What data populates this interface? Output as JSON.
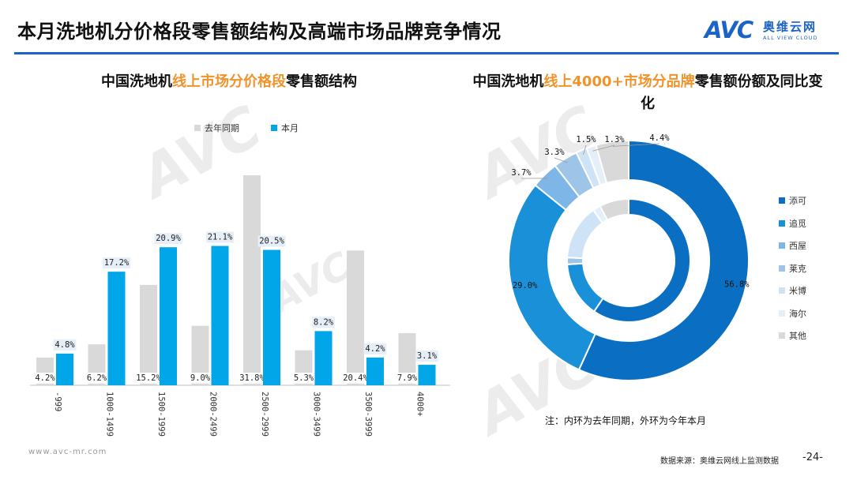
{
  "page": {
    "title": "本月洗地机分价格段零售额结构及高端市场品牌竞争情况",
    "brand_mark": "AVC",
    "brand_name": "奥维云网",
    "brand_en": "ALL VIEW CLOUD",
    "watermark": "AVC",
    "note": "注：内环为去年同期，外环为今年本月",
    "footer_url": "www.avc-mr.com",
    "source": "数据来源：奥维云网线上监测数据",
    "page_number": "-24-"
  },
  "colors": {
    "accent": "#1b63c6",
    "highlight": "#f0932b",
    "bar_last_year": "#d9d9d9",
    "bar_this_month": "#00a6e8"
  },
  "left_chart": {
    "title_prefix": "中国洗地机",
    "title_highlight": "线上市场分价格段",
    "title_suffix": "零售额结构"
  },
  "right_chart": {
    "title_prefix": "中国洗地机",
    "title_highlight": "线上4000+市场分品牌",
    "title_suffix": "零售额份额及同比变化"
  },
  "chart_data": [
    {
      "type": "bar",
      "categories": [
        "-999",
        "1000-1499",
        "1500-1999",
        "2000-2499",
        "2500-2999",
        "3000-3499",
        "3500-3999",
        "4000+"
      ],
      "series": [
        {
          "name": "去年同期",
          "values": [
            4.2,
            6.2,
            15.2,
            9.0,
            31.8,
            5.3,
            20.4,
            7.9
          ],
          "labels": [
            "4.2%",
            "6.2%",
            "15.2%",
            "9.0%",
            "31.8%",
            "5.3%",
            "20.4%",
            "7.9%"
          ],
          "color": "#d9d9d9"
        },
        {
          "name": "本月",
          "values": [
            4.8,
            17.2,
            20.9,
            21.1,
            20.5,
            8.2,
            4.2,
            3.1
          ],
          "labels": [
            "4.8%",
            "17.2%",
            "20.9%",
            "21.1%",
            "20.5%",
            "8.2%",
            "4.2%",
            "3.1%"
          ],
          "color": "#00a6e8"
        }
      ],
      "ylim": [
        0,
        32
      ],
      "grid": false,
      "legend": "top"
    },
    {
      "type": "pie",
      "variant": "two-ring donut",
      "categories": [
        "添可",
        "追觅",
        "西屋",
        "莱克",
        "米博",
        "海尔",
        "其他"
      ],
      "colors": [
        "#0a6fc2",
        "#1a90d9",
        "#7eb6e8",
        "#9ec4e8",
        "#cfe3f7",
        "#e5eff9",
        "#d9d9d9"
      ],
      "series": [
        {
          "name": "外环",
          "values": [
            56.8,
            29.0,
            3.7,
            3.3,
            1.5,
            1.3,
            4.4
          ],
          "labels": [
            "56.8%",
            "29.0%",
            "3.7%",
            "3.3%",
            "1.5%",
            "1.3%",
            "4.4%"
          ]
        },
        {
          "name": "内环",
          "values": [
            59.5,
            14.5,
            0,
            1.8,
            14.5,
            2.0,
            7.7
          ]
        }
      ],
      "legend": "right"
    }
  ]
}
